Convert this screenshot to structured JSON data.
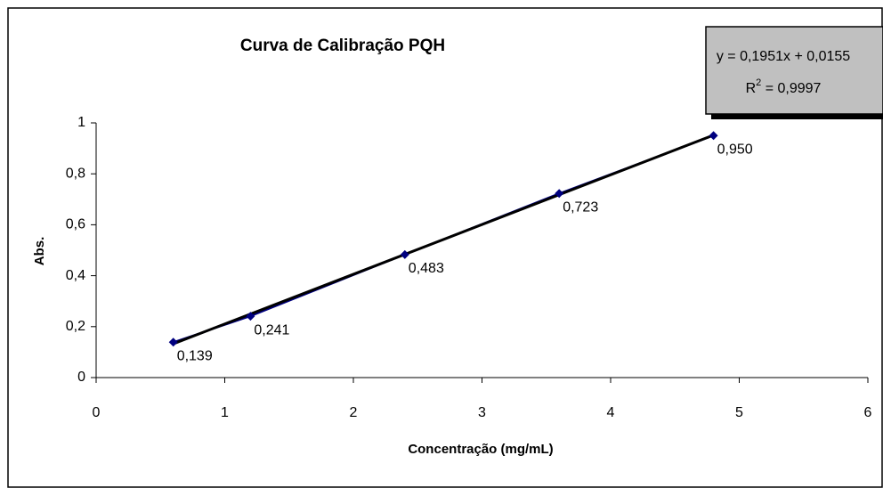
{
  "chart_data": {
    "type": "scatter",
    "title": "Curva de Calibração PQH",
    "x_label": "Concentração (mg/mL)",
    "y_label": "Abs.",
    "series": [
      {
        "name": "PQH",
        "color": "#000080",
        "x": [
          0.6,
          1.2,
          2.4,
          3.6,
          4.8
        ],
        "values": [
          0.139,
          0.241,
          0.483,
          0.723,
          0.95
        ],
        "value_labels": [
          "0,139",
          "0,241",
          "0,483",
          "0,723",
          "0,950"
        ]
      }
    ],
    "trendline": {
      "slope": 0.1951,
      "intercept": 0.0155,
      "color": "#000000",
      "label": "y = 0,1951x + 0,0155",
      "r2_label": {
        "base": "R",
        "sup": "2",
        "rest": " = 0,9997"
      }
    },
    "xlim": [
      0,
      6
    ],
    "xticks": [
      0,
      1,
      2,
      3,
      4,
      5,
      6
    ],
    "ylim": [
      0,
      1
    ],
    "yticks": [
      0,
      {
        "value": 0.2,
        "label": "0,2"
      },
      {
        "value": 0.4,
        "label": "0,4"
      },
      {
        "value": 0.6,
        "label": "0,6"
      },
      {
        "value": 0.8,
        "label": "0,8"
      },
      1
    ],
    "grid": false
  }
}
